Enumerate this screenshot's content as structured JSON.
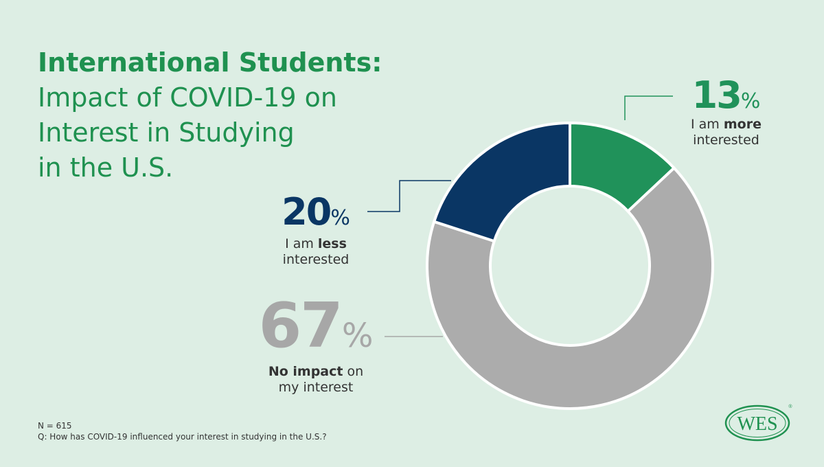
{
  "title": {
    "line1": "International Students:",
    "line2": "Impact of COVID-19 on",
    "line3": "Interest in Studying",
    "line4": "in the U.S."
  },
  "colors": {
    "more": "#20925a",
    "less": "#0a3664",
    "none": "#acacac",
    "title": "#1f9150",
    "background": "#ddeee4"
  },
  "chart_data": {
    "type": "pie",
    "donut": true,
    "title": "International Students: Impact of COVID-19 on Interest in Studying in the U.S.",
    "slices": [
      {
        "key": "more",
        "value": 13,
        "label_pre": "I am ",
        "label_bold": "more",
        "label_post": "interested"
      },
      {
        "key": "none",
        "value": 67,
        "label_pre": "",
        "label_bold": "No impact",
        "label_post": " on my interest"
      },
      {
        "key": "less",
        "value": 20,
        "label_pre": "I am ",
        "label_bold": "less",
        "label_post": "interested"
      }
    ],
    "unit": "%"
  },
  "callouts": {
    "more": {
      "number": "13",
      "pct": "%",
      "pre": "I am ",
      "bold": "more",
      "post": "interested"
    },
    "less": {
      "number": "20",
      "pct": "%",
      "pre": "I am ",
      "bold": "less",
      "post": "interested"
    },
    "none": {
      "number": "67",
      "pct": "%",
      "bold": "No impact",
      "post1": " on",
      "post2": "my interest"
    }
  },
  "footer": {
    "n": "N = 615",
    "question": "Q: How has COVID-19 influenced your interest in studying in the U.S.?"
  },
  "logo": {
    "text": "WES",
    "registered": "®"
  }
}
